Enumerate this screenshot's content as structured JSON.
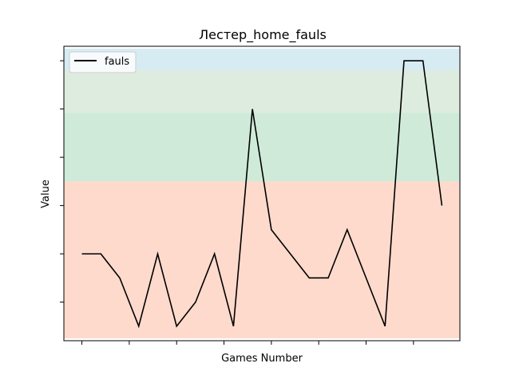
{
  "chart_data": {
    "type": "line",
    "title": "Лестер_home_fauls",
    "xlabel": "Games Number",
    "ylabel": "Value",
    "legend": {
      "placement": "top-left"
    },
    "grid": false,
    "x": [
      0,
      1,
      2,
      3,
      4,
      5,
      6,
      7,
      8,
      9,
      10,
      11,
      12,
      13,
      14,
      15,
      16,
      17,
      18,
      19
    ],
    "series": [
      {
        "name": "fauls",
        "color": "#000000",
        "values": [
          10,
          10,
          9,
          7,
          10,
          7,
          8,
          10,
          7,
          16,
          11,
          10,
          9,
          9,
          11,
          9,
          7,
          18,
          18,
          12
        ]
      }
    ],
    "ylim": [
      6.4,
      18.6
    ],
    "xlim": [
      -0.95,
      19.95
    ],
    "bands": [
      {
        "from": 6.5,
        "to": 13.0,
        "color": "#fdbba2"
      },
      {
        "from": 13.0,
        "to": 15.85,
        "color": "#a8d8b9"
      },
      {
        "from": 15.85,
        "to": 17.6,
        "color": "#c3dcc4"
      },
      {
        "from": 17.6,
        "to": 18.5,
        "color": "#b5dde8"
      }
    ]
  }
}
